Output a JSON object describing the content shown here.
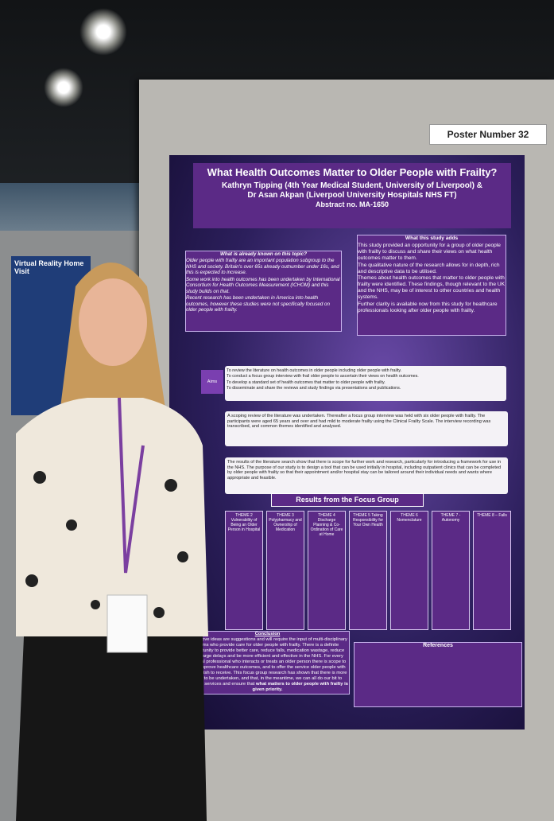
{
  "label": "Poster Number 32",
  "side_poster_title": "Virtual Reality Home Visit",
  "poster": {
    "title": "What Health Outcomes Matter to Older People with Frailty?",
    "authors": [
      "Kathryn Tipping (4th Year Medical Student, University of Liverpool) &",
      "Dr Asan Akpan (Liverpool University Hospitals NHS FT)"
    ],
    "abstract": "Abstract no. MA-1650",
    "known": {
      "heading": "What is already known on this topic?",
      "points": [
        "Older people with frailty are an important population subgroup to the NHS and society. Britain's over 65s already outnumber under 16s, and this is expected to increase.",
        "Some work into health outcomes has been undertaken by International Consortium for Health Outcomes Measurement (ICHOM) and this study builds on that.",
        "Recent research has been undertaken in America into health outcomes, however these studies were not specifically focused on older people with frailty."
      ]
    },
    "adds": {
      "heading": "What this study adds",
      "points": [
        "This study provided an opportunity for a group of older people with frailty to discuss and share their views on what health outcomes matter to them.",
        "The qualitative nature of the research allows for in depth, rich and descriptive data to be utilised.",
        "Themes about health outcomes that matter to older people with frailty were identified. These findings, though relevant to the UK and the NHS, may be of interest to other countries and health systems.",
        "Further clarity is available now from this study for healthcare professionals looking after older people with frailty."
      ]
    },
    "aims": {
      "label": "Aims",
      "points": [
        "To review the literature on health outcomes in older people including older people with frailty.",
        "To conduct a focus group interview with frail older people to ascertain their views on health outcomes.",
        "To develop a standard set of health outcomes that matter to older people with frailty.",
        "To disseminate and share the reviews and study findings via presentations and publications."
      ]
    },
    "methodology": "A scoping review of the literature was undertaken. Thereafter a focus group interview was held with six older people with frailty. The participants were aged 65 years and over and had mild to moderate frailty using the Clinical Frailty Scale. The interview recording was transcribed, and common themes identified and analysed.",
    "review": "The results of the literature search show that there is scope for further work and research, particularly for introducing a framework for use in the NHS. The purpose of our study is to design a tool that can be used initially in hospital, including outpatient clinics that can be completed by older people with frailty so that their appointment and/or hospital stay can be tailored around their individual needs and wants where appropriate and feasible.",
    "results_heading": "Results from the Focus Group",
    "themes": [
      "THEME 2 Vulnerability of Being an Older Person in Hospital",
      "THEME 3 Polypharmacy and Ownership of Medication",
      "THEME 4 Discharge Planning & Co-Ordination of Care at Home",
      "THEME 5 Taking Responsibility for Your Own Health",
      "THEME 6 Nomenclature",
      "THEME 7 - Autonomy",
      "THEME 8 – Falls"
    ],
    "conclusion": {
      "heading": "Conclusion",
      "text": "The above ideas are suggestions and will require the input of multi-disciplinary teams who provide care for older people with frailty. There is a definite opportunity to provide better care, reduce falls, medication wastage, reduce discharge delays and be more efficient and effective in the NHS. For every medical professional who interacts or treats an older person there is scope to help improve healthcare outcomes, and to offer the service older people with frailty wish to receive. This focus group research has shown that there is more work to be undertaken, and that, in the meantime, we can all do our bit to improve services and ensure that",
      "emphasis": "what matters to older people with frailty is given priority."
    },
    "references_heading": "References"
  }
}
